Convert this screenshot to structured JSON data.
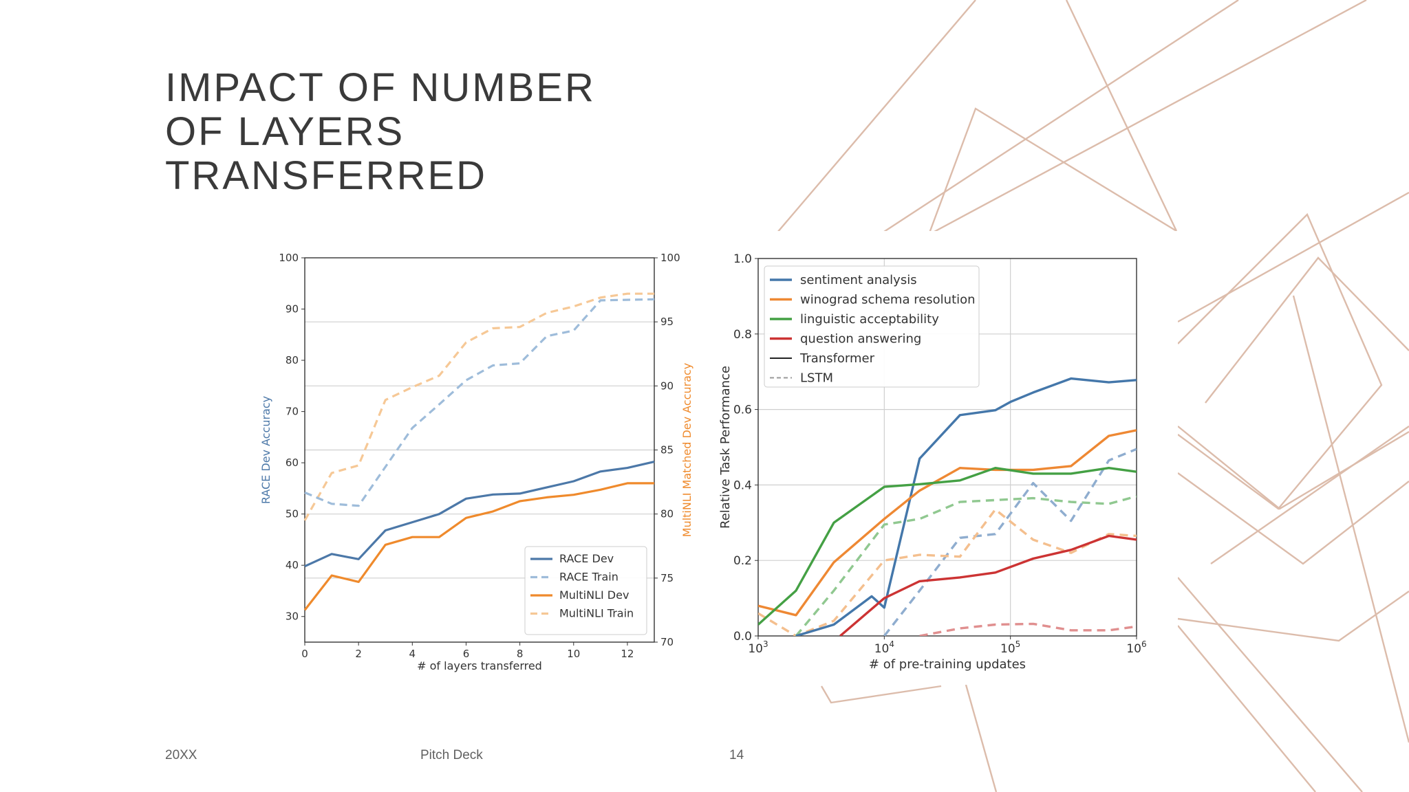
{
  "slide": {
    "title_lines": [
      "IMPACT OF NUMBER",
      "OF LAYERS",
      "TRANSFERRED"
    ],
    "footer": {
      "year": "20XX",
      "deck": "Pitch Deck",
      "page": "14"
    },
    "accent_color": "#d9b9a6"
  },
  "chart_data": [
    {
      "type": "line",
      "xlabel": "# of layers transferred",
      "ylabel_left": "RACE Dev Accuracy",
      "ylabel_right": "MultiNLI Matched Dev Accuracy",
      "xlim": [
        0,
        13
      ],
      "ylim_left": [
        25,
        100
      ],
      "ylim_right": [
        70,
        100
      ],
      "xticks": [
        0,
        2,
        4,
        6,
        8,
        10,
        12
      ],
      "yticks_left": [
        30,
        40,
        50,
        60,
        70,
        80,
        90,
        100
      ],
      "yticks_right": [
        70,
        75,
        80,
        85,
        90,
        95,
        100
      ],
      "grid": "horizontal, right axis",
      "legend_position": "lower-right",
      "series": [
        {
          "name": "RACE Dev",
          "axis": "left",
          "style": "solid",
          "color": "#4c78a8",
          "x": [
            0,
            1,
            2,
            3,
            4,
            5,
            6,
            7,
            8,
            9,
            10,
            11,
            12,
            13
          ],
          "values": [
            39.8,
            42.2,
            41.2,
            46.8,
            48.4,
            50.0,
            53.0,
            53.8,
            54.0,
            55.2,
            56.4,
            58.3,
            59.0,
            60.2
          ]
        },
        {
          "name": "RACE Train",
          "axis": "left",
          "style": "dashed",
          "color": "#9ebcda",
          "x": [
            0,
            1,
            2,
            3,
            4,
            5,
            6,
            7,
            8,
            9,
            10,
            11,
            12,
            13
          ],
          "values": [
            54.2,
            52.0,
            51.6,
            59.2,
            66.8,
            71.4,
            76.1,
            79.0,
            79.4,
            84.7,
            85.8,
            91.7,
            91.8,
            91.9
          ]
        },
        {
          "name": "MultiNLI Dev",
          "axis": "right",
          "style": "solid",
          "color": "#ef8a2c",
          "x": [
            0,
            1,
            2,
            3,
            4,
            5,
            6,
            7,
            8,
            9,
            10,
            11,
            12,
            13
          ],
          "values": [
            72.5,
            75.2,
            74.7,
            77.6,
            78.2,
            78.2,
            79.7,
            80.2,
            81.0,
            81.3,
            81.5,
            81.9,
            82.4,
            82.4
          ]
        },
        {
          "name": "MultiNLI Train",
          "axis": "right",
          "style": "dashed",
          "color": "#f6c896",
          "x": [
            0,
            1,
            2,
            3,
            4,
            5,
            6,
            7,
            8,
            9,
            10,
            11,
            12,
            13
          ],
          "values": [
            79.5,
            83.2,
            83.8,
            88.9,
            89.9,
            90.8,
            93.4,
            94.5,
            94.6,
            95.7,
            96.2,
            96.9,
            97.2,
            97.2
          ]
        }
      ]
    },
    {
      "type": "line",
      "xlabel": "# of pre-training updates",
      "ylabel": "Relative Task Performance",
      "xscale": "log",
      "xlim_log10": [
        3,
        6
      ],
      "ylim": [
        0,
        1
      ],
      "xtick_labels": [
        "10",
        "10",
        "10",
        "10"
      ],
      "xtick_exponents": [
        "3",
        "4",
        "5",
        "6"
      ],
      "yticks": [
        "0.0",
        "0.2",
        "0.4",
        "0.6",
        "0.8",
        "1.0"
      ],
      "grid": "both",
      "legend_position": "upper-left",
      "legend": [
        {
          "name": "sentiment analysis",
          "color": "#4477aa",
          "style": "solid"
        },
        {
          "name": "winograd schema resolution",
          "color": "#ee8833",
          "style": "solid"
        },
        {
          "name": "linguistic acceptability",
          "color": "#44a044",
          "style": "solid"
        },
        {
          "name": "question answering",
          "color": "#cc3333",
          "style": "solid"
        },
        {
          "name": "Transformer",
          "color": "#222222",
          "style": "solid"
        },
        {
          "name": "LSTM",
          "color": "#999999",
          "style": "dashed"
        }
      ],
      "series": [
        {
          "name": "sentiment analysis (Transformer)",
          "color": "#4477aa",
          "style": "solid",
          "x_log10": [
            3.3,
            3.5,
            3.6,
            3.9,
            4.0,
            4.28,
            4.6,
            4.88,
            5.0,
            5.18,
            5.48,
            5.78,
            6.0
          ],
          "values": [
            0.0,
            0.02,
            0.03,
            0.105,
            0.075,
            0.47,
            0.585,
            0.598,
            0.62,
            0.645,
            0.682,
            0.672,
            0.678
          ]
        },
        {
          "name": "winograd schema resolution (Transformer)",
          "color": "#ee8833",
          "style": "solid",
          "x_log10": [
            3.0,
            3.3,
            3.6,
            4.0,
            4.28,
            4.6,
            4.88,
            5.18,
            5.48,
            5.78,
            6.0
          ],
          "values": [
            0.08,
            0.055,
            0.195,
            0.31,
            0.385,
            0.445,
            0.44,
            0.44,
            0.45,
            0.53,
            0.545
          ]
        },
        {
          "name": "linguistic acceptability (Transformer)",
          "color": "#44a044",
          "style": "solid",
          "x_log10": [
            3.0,
            3.3,
            3.6,
            4.0,
            4.28,
            4.6,
            4.88,
            5.18,
            5.48,
            5.78,
            6.0
          ],
          "values": [
            0.03,
            0.12,
            0.3,
            0.395,
            0.402,
            0.412,
            0.445,
            0.43,
            0.43,
            0.445,
            0.435
          ]
        },
        {
          "name": "question answering (Transformer)",
          "color": "#cc3333",
          "style": "solid",
          "x_log10": [
            3.65,
            4.0,
            4.28,
            4.6,
            4.88,
            5.18,
            5.48,
            5.78,
            6.0
          ],
          "values": [
            0.0,
            0.1,
            0.145,
            0.155,
            0.168,
            0.205,
            0.228,
            0.265,
            0.255
          ]
        },
        {
          "name": "sentiment analysis (LSTM)",
          "color": "#8fadcf",
          "style": "dashed",
          "x_log10": [
            4.0,
            4.28,
            4.6,
            4.88,
            5.18,
            5.48,
            5.78,
            6.0
          ],
          "values": [
            0.0,
            0.12,
            0.26,
            0.27,
            0.405,
            0.305,
            0.465,
            0.495
          ]
        },
        {
          "name": "winograd schema resolution (LSTM)",
          "color": "#f4bf8e",
          "style": "dashed",
          "x_log10": [
            3.0,
            3.3,
            3.6,
            4.0,
            4.28,
            4.6,
            4.88,
            5.18,
            5.48,
            5.78,
            6.0
          ],
          "values": [
            0.06,
            0.0,
            0.04,
            0.2,
            0.215,
            0.21,
            0.335,
            0.255,
            0.22,
            0.27,
            0.265
          ]
        },
        {
          "name": "linguistic acceptability (LSTM)",
          "color": "#90c890",
          "style": "dashed",
          "x_log10": [
            3.3,
            3.6,
            4.0,
            4.28,
            4.6,
            4.88,
            5.18,
            5.48,
            5.78,
            6.0
          ],
          "values": [
            0.0,
            0.12,
            0.295,
            0.31,
            0.355,
            0.36,
            0.365,
            0.355,
            0.35,
            0.37
          ]
        },
        {
          "name": "question answering (LSTM)",
          "color": "#e08f8f",
          "style": "dashed",
          "x_log10": [
            4.28,
            4.6,
            4.88,
            5.18,
            5.48,
            5.78,
            6.0
          ],
          "values": [
            0.0,
            0.02,
            0.03,
            0.032,
            0.015,
            0.015,
            0.025
          ]
        }
      ]
    }
  ]
}
